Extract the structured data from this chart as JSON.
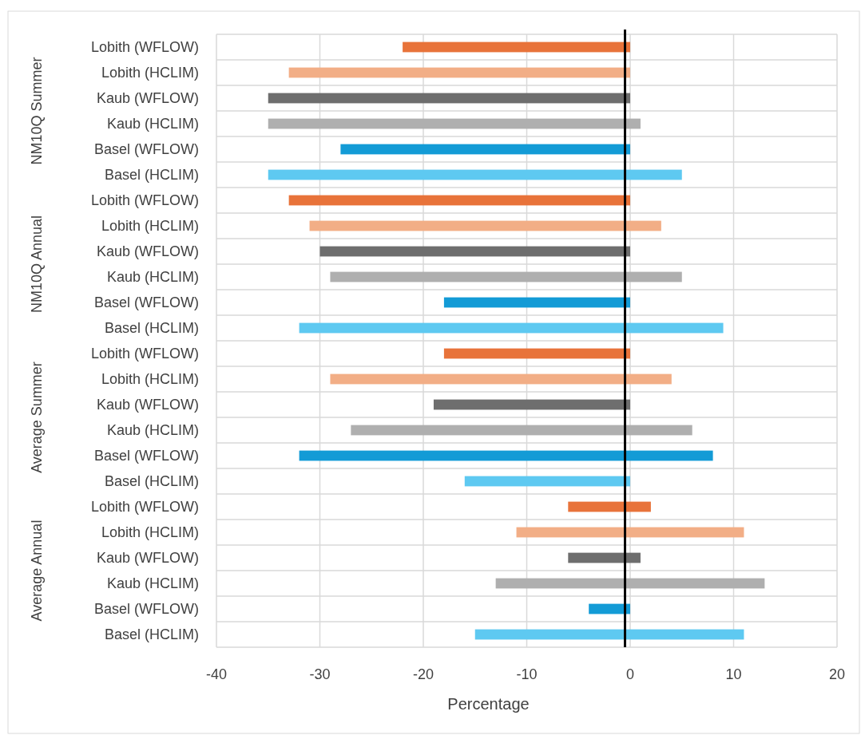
{
  "chart_data": {
    "type": "bar",
    "orientation": "horizontal",
    "xlabel": "Percentage",
    "categories": [
      "Lobith (WFLOW)",
      "Lobith (HCLIM)",
      "Kaub (WFLOW)",
      "Kaub (HCLIM)",
      "Basel (WFLOW)",
      "Basel (HCLIM)",
      "Lobith (WFLOW)",
      "Lobith (HCLIM)",
      "Kaub (WFLOW)",
      "Kaub (HCLIM)",
      "Basel (WFLOW)",
      "Basel (HCLIM)",
      "Lobith (WFLOW)",
      "Lobith (HCLIM)",
      "Kaub (WFLOW)",
      "Kaub (HCLIM)",
      "Basel (WFLOW)",
      "Basel (HCLIM)",
      "Lobith (WFLOW)",
      "Lobith (HCLIM)",
      "Kaub (WFLOW)",
      "Kaub (HCLIM)",
      "Basel (WFLOW)",
      "Basel (HCLIM)"
    ],
    "base": [
      -22,
      -33,
      -35,
      -35,
      -28,
      -35,
      -33,
      -31,
      -30,
      -29,
      -18,
      -32,
      -18,
      -29,
      -19,
      -27,
      -32,
      -16,
      -6,
      -11,
      -6,
      -13,
      -4,
      -15
    ],
    "values": [
      22,
      33,
      35,
      36,
      28,
      40,
      33,
      34,
      30,
      34,
      18,
      41,
      18,
      33,
      19,
      33,
      40,
      16,
      8,
      22,
      7,
      26,
      4,
      26
    ],
    "colors": [
      "#e8733a",
      "#f2ae86",
      "#6e6e6e",
      "#afafaf",
      "#139bd6",
      "#5ec9f1",
      "#e8733a",
      "#f2ae86",
      "#6e6e6e",
      "#afafaf",
      "#139bd6",
      "#5ec9f1",
      "#e8733a",
      "#f2ae86",
      "#6e6e6e",
      "#afafaf",
      "#139bd6",
      "#5ec9f1",
      "#e8733a",
      "#f2ae86",
      "#6e6e6e",
      "#afafaf",
      "#139bd6",
      "#5ec9f1"
    ],
    "xlim": [
      -40,
      20
    ],
    "xticks": [
      -40,
      -30,
      -20,
      -10,
      0,
      10,
      20
    ],
    "grid": true,
    "ref_lines": [
      {
        "axis": "x",
        "value": -0.5,
        "color": "#000000"
      }
    ],
    "annotations": [
      "NM10Q Summer",
      "NM10Q Annual",
      "Average Summer",
      "Average Annual"
    ]
  }
}
